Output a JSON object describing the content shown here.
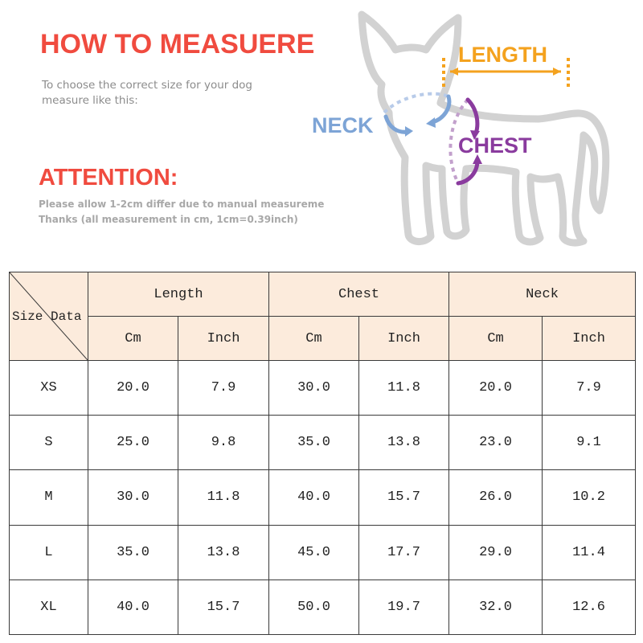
{
  "header": {
    "title": "HOW TO MEASUERE",
    "subtitle": "To choose the correct size for your dog measure like this:",
    "attention": "ATTENTION:",
    "note_line1": "Please allow 1-2cm differ due to manual measureme",
    "note_line2": "Thanks (all measurement in cm, 1cm=0.39inch)"
  },
  "diagram": {
    "length_label": "LENGTH",
    "neck_label": "NECK",
    "chest_label": "CHEST"
  },
  "colors": {
    "title_red": "#f04b3f",
    "gray_text": "#8c8c8c",
    "length_orange": "#f4a21e",
    "neck_blue": "#7da4d6",
    "chest_purple": "#8a3b9e",
    "dog_outline": "#d2d2d2",
    "header_bg": "#fcebdc"
  },
  "table": {
    "corner_label": "Size Data",
    "groups": [
      "Length",
      "Chest",
      "Neck"
    ],
    "units": [
      "Cm",
      "Inch",
      "Cm",
      "Inch",
      "Cm",
      "Inch"
    ],
    "rows": [
      {
        "size": "XS",
        "values": [
          "20.0",
          "7.9",
          "30.0",
          "11.8",
          "20.0",
          "7.9"
        ]
      },
      {
        "size": "S",
        "values": [
          "25.0",
          "9.8",
          "35.0",
          "13.8",
          "23.0",
          "9.1"
        ]
      },
      {
        "size": "M",
        "values": [
          "30.0",
          "11.8",
          "40.0",
          "15.7",
          "26.0",
          "10.2"
        ]
      },
      {
        "size": "L",
        "values": [
          "35.0",
          "13.8",
          "45.0",
          "17.7",
          "29.0",
          "11.4"
        ]
      },
      {
        "size": "XL",
        "values": [
          "40.0",
          "15.7",
          "50.0",
          "19.7",
          "32.0",
          "12.6"
        ]
      }
    ]
  }
}
